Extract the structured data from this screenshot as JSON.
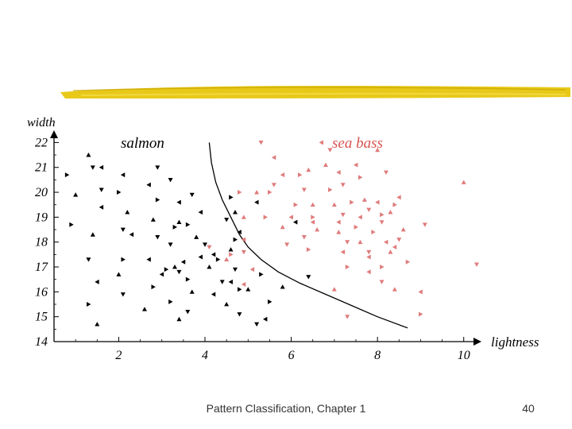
{
  "footer": {
    "text": "Pattern Classification, Chapter 1",
    "page_number": "40"
  },
  "colors": {
    "salmon_marker": "#000000",
    "sea_bass_marker": "#e07b7b",
    "sea_bass_label": "#d9534f",
    "highlight_stroke": "#e6c300"
  },
  "chart_data": {
    "type": "scatter",
    "xlabel": "lightness",
    "ylabel": "width",
    "xlim": [
      0.5,
      10.3
    ],
    "ylim": [
      14,
      22.3
    ],
    "xticks": [
      2,
      4,
      6,
      8,
      10
    ],
    "yticks": [
      14,
      15,
      16,
      17,
      18,
      19,
      20,
      21,
      22
    ],
    "grid": false,
    "class_labels": {
      "salmon": "salmon",
      "sea_bass": "sea bass"
    },
    "series": [
      {
        "name": "salmon",
        "points": [
          [
            1.3,
            21.5
          ],
          [
            1.4,
            21.0
          ],
          [
            1.6,
            21.0
          ],
          [
            0.8,
            20.7
          ],
          [
            1.0,
            19.9
          ],
          [
            1.6,
            20.1
          ],
          [
            1.6,
            19.4
          ],
          [
            0.9,
            18.7
          ],
          [
            1.4,
            18.3
          ],
          [
            1.3,
            17.3
          ],
          [
            1.5,
            16.4
          ],
          [
            1.3,
            15.5
          ],
          [
            1.5,
            14.7
          ],
          [
            2.9,
            21.0
          ],
          [
            2.1,
            20.7
          ],
          [
            2.0,
            20.0
          ],
          [
            2.2,
            19.2
          ],
          [
            2.1,
            18.5
          ],
          [
            2.3,
            18.3
          ],
          [
            2.1,
            17.3
          ],
          [
            2.0,
            16.7
          ],
          [
            2.1,
            15.9
          ],
          [
            2.7,
            20.3
          ],
          [
            2.9,
            19.7
          ],
          [
            2.8,
            18.9
          ],
          [
            2.9,
            18.2
          ],
          [
            2.7,
            17.3
          ],
          [
            2.8,
            16.2
          ],
          [
            2.6,
            15.3
          ],
          [
            3.2,
            20.5
          ],
          [
            3.4,
            19.6
          ],
          [
            3.3,
            18.6
          ],
          [
            3.4,
            18.8
          ],
          [
            3.2,
            17.9
          ],
          [
            3.0,
            16.7
          ],
          [
            3.1,
            16.9
          ],
          [
            3.3,
            17.0
          ],
          [
            3.4,
            16.8
          ],
          [
            3.5,
            17.2
          ],
          [
            3.2,
            15.6
          ],
          [
            3.4,
            14.9
          ],
          [
            3.7,
            19.9
          ],
          [
            3.9,
            19.2
          ],
          [
            3.6,
            18.7
          ],
          [
            3.8,
            18.2
          ],
          [
            4.0,
            17.9
          ],
          [
            3.9,
            17.4
          ],
          [
            3.6,
            16.5
          ],
          [
            3.7,
            16.0
          ],
          [
            3.6,
            15.2
          ],
          [
            4.2,
            17.5
          ],
          [
            4.3,
            17.3
          ],
          [
            4.1,
            17.0
          ],
          [
            4.4,
            16.4
          ],
          [
            4.2,
            15.9
          ],
          [
            4.6,
            19.8
          ],
          [
            4.7,
            19.2
          ],
          [
            4.5,
            18.9
          ],
          [
            4.8,
            18.4
          ],
          [
            4.7,
            18.1
          ],
          [
            4.6,
            17.7
          ],
          [
            4.7,
            16.9
          ],
          [
            4.6,
            16.4
          ],
          [
            4.8,
            16.1
          ],
          [
            4.5,
            15.5
          ],
          [
            4.8,
            15.1
          ],
          [
            5.2,
            19.6
          ],
          [
            5.3,
            16.7
          ],
          [
            5.0,
            16.1
          ],
          [
            5.2,
            14.7
          ],
          [
            5.4,
            14.9
          ],
          [
            5.5,
            15.6
          ],
          [
            5.8,
            16.2
          ],
          [
            6.4,
            16.6
          ],
          [
            6.1,
            18.8
          ]
        ]
      },
      {
        "name": "sea bass",
        "points": [
          [
            5.3,
            22.0
          ],
          [
            5.6,
            21.4
          ],
          [
            5.5,
            20.0
          ],
          [
            5.2,
            20.0
          ],
          [
            5.6,
            20.3
          ],
          [
            5.8,
            20.7
          ],
          [
            5.4,
            19.0
          ],
          [
            5.8,
            18.6
          ],
          [
            5.9,
            17.9
          ],
          [
            4.9,
            18.1
          ],
          [
            4.8,
            20.0
          ],
          [
            4.9,
            19.0
          ],
          [
            4.9,
            17.6
          ],
          [
            5.1,
            16.9
          ],
          [
            4.6,
            17.5
          ],
          [
            4.5,
            17.3
          ],
          [
            4.1,
            17.8
          ],
          [
            4.9,
            16.3
          ],
          [
            6.2,
            20.7
          ],
          [
            6.4,
            20.9
          ],
          [
            6.3,
            20.1
          ],
          [
            6.0,
            19.0
          ],
          [
            6.1,
            19.5
          ],
          [
            6.5,
            19.5
          ],
          [
            6.3,
            18.2
          ],
          [
            6.5,
            18.8
          ],
          [
            6.4,
            17.7
          ],
          [
            6.8,
            21.1
          ],
          [
            6.9,
            21.7
          ],
          [
            6.7,
            22.0
          ],
          [
            6.5,
            19.0
          ],
          [
            6.6,
            18.5
          ],
          [
            7.2,
            20.3
          ],
          [
            7.1,
            20.8
          ],
          [
            6.9,
            20.1
          ],
          [
            7.0,
            19.5
          ],
          [
            7.2,
            19.1
          ],
          [
            7.1,
            18.8
          ],
          [
            7.4,
            19.6
          ],
          [
            7.1,
            18.4
          ],
          [
            7.3,
            18.0
          ],
          [
            7.2,
            17.6
          ],
          [
            7.3,
            17.0
          ],
          [
            7.0,
            16.1
          ],
          [
            7.3,
            15.0
          ],
          [
            7.5,
            21.1
          ],
          [
            7.6,
            20.6
          ],
          [
            7.7,
            19.7
          ],
          [
            7.8,
            19.3
          ],
          [
            7.6,
            19.0
          ],
          [
            7.5,
            18.6
          ],
          [
            7.6,
            18.0
          ],
          [
            7.8,
            17.6
          ],
          [
            7.8,
            17.4
          ],
          [
            7.9,
            18.4
          ],
          [
            8.0,
            21.7
          ],
          [
            8.2,
            20.8
          ],
          [
            8.0,
            19.6
          ],
          [
            8.1,
            19.1
          ],
          [
            8.3,
            19.2
          ],
          [
            8.1,
            18.8
          ],
          [
            8.2,
            18.0
          ],
          [
            8.1,
            17.0
          ],
          [
            8.3,
            17.6
          ],
          [
            8.1,
            16.4
          ],
          [
            8.5,
            19.8
          ],
          [
            8.4,
            19.5
          ],
          [
            8.6,
            18.5
          ],
          [
            8.5,
            18.1
          ],
          [
            8.4,
            17.8
          ],
          [
            8.7,
            17.2
          ],
          [
            8.4,
            16.1
          ],
          [
            9.1,
            18.7
          ],
          [
            9.0,
            16.0
          ],
          [
            9.0,
            15.1
          ],
          [
            10.0,
            20.4
          ],
          [
            10.3,
            17.1
          ],
          [
            7.8,
            16.8
          ]
        ]
      }
    ],
    "decision_boundary": [
      [
        4.1,
        22.0
      ],
      [
        4.15,
        21.2
      ],
      [
        4.25,
        20.4
      ],
      [
        4.4,
        19.7
      ],
      [
        4.6,
        19.0
      ],
      [
        4.8,
        18.3
      ],
      [
        5.0,
        17.8
      ],
      [
        5.3,
        17.3
      ],
      [
        5.7,
        16.8
      ],
      [
        6.2,
        16.35
      ],
      [
        6.8,
        15.9
      ],
      [
        7.4,
        15.45
      ],
      [
        8.0,
        15.0
      ],
      [
        8.7,
        14.55
      ]
    ]
  }
}
